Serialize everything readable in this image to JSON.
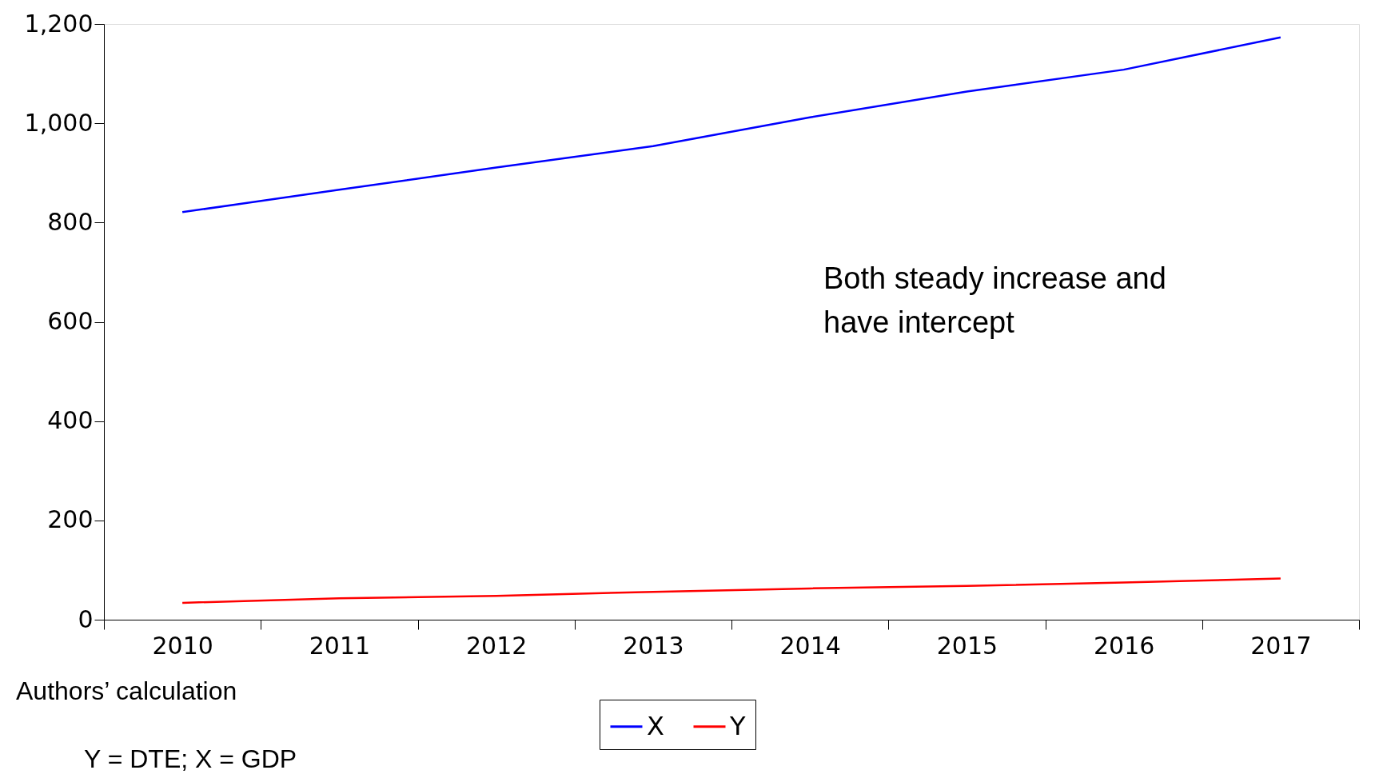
{
  "chart_data": {
    "type": "line",
    "categories": [
      "2010",
      "2011",
      "2012",
      "2013",
      "2014",
      "2015",
      "2016",
      "2017"
    ],
    "series": [
      {
        "name": "X",
        "color": "#0000ff",
        "values": [
          821,
          866,
          911,
          954,
          1012,
          1064,
          1108,
          1173
        ]
      },
      {
        "name": "Y",
        "color": "#ff0000",
        "values": [
          34,
          43,
          48,
          56,
          63,
          68,
          75,
          83
        ]
      }
    ],
    "ylim": [
      0,
      1200
    ],
    "yticks": [
      0,
      200,
      400,
      600,
      800,
      {
        "value": 1000,
        "label": "1,000"
      },
      {
        "value": 1200,
        "label": "1,200"
      }
    ],
    "grid": false,
    "legend": "bottom",
    "line_style": "solid",
    "marker": "none",
    "annotations": [
      "Both steady increase and have intercept",
      "Authors’ calculation",
      "Y = DTE; X = GDP"
    ]
  }
}
